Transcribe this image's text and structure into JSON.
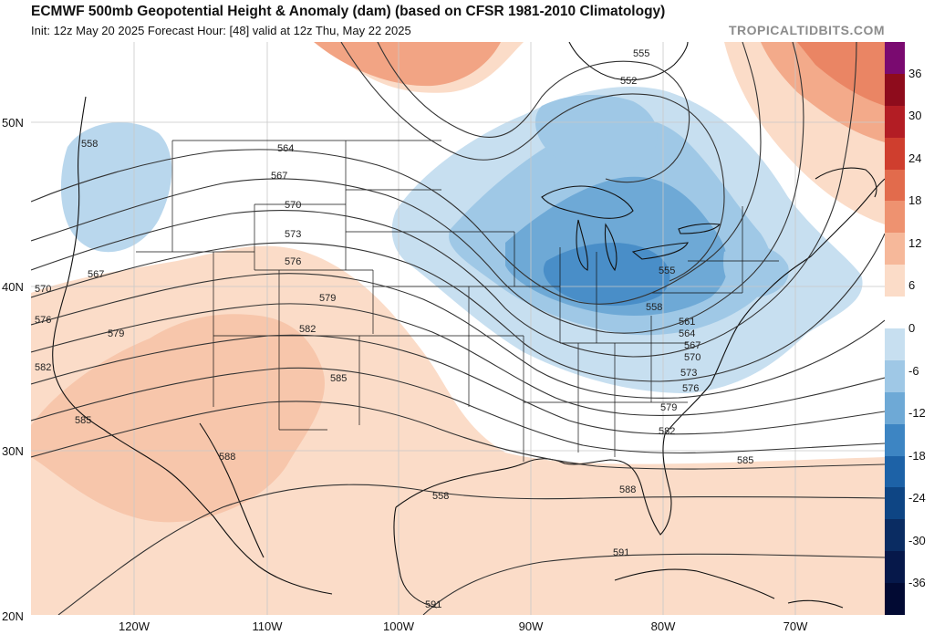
{
  "header": {
    "title": "ECMWF 500mb Geopotential Height & Anomaly (dam) (based on CFSR 1981-2010 Climatology)",
    "subtitle": "Init: 12z May 20 2025   Forecast Hour: [48]   valid at 12z Thu, May 22 2025",
    "credit": "TROPICALTIDBITS.COM"
  },
  "axes": {
    "lat_labels": [
      "50N",
      "40N",
      "30N",
      "20N"
    ],
    "lon_labels": [
      "120W",
      "110W",
      "100W",
      "90W",
      "80W",
      "70W"
    ]
  },
  "colorbar": {
    "labels": [
      "36",
      "30",
      "24",
      "18",
      "12",
      "6",
      "0",
      "-6",
      "-12",
      "-18",
      "-24",
      "-30",
      "-36"
    ],
    "colors": [
      "#7a0a70",
      "#8e0c1c",
      "#b31d24",
      "#cf3e2e",
      "#e26b4c",
      "#ee9270",
      "#f6b89a",
      "#fbdcc8",
      "#ffffff",
      "#c7dff0",
      "#9fc8e6",
      "#6ea9d6",
      "#3d85c3",
      "#1d62a7",
      "#0e4584",
      "#0a2c62",
      "#06184a",
      "#020a33"
    ]
  },
  "contour_labels": [
    "555",
    "552",
    "558",
    "564",
    "567",
    "570",
    "573",
    "576",
    "579",
    "582",
    "585",
    "588",
    "591",
    "555",
    "558",
    "561",
    "564",
    "567",
    "570",
    "573",
    "576",
    "579",
    "582",
    "585",
    "588",
    "591",
    "567",
    "570",
    "576",
    "579",
    "582",
    "585",
    "558"
  ],
  "chart_data": {
    "type": "heatmap",
    "title": "ECMWF 500mb Geopotential Height & Anomaly (dam) (based on CFSR 1981-2010 Climatology)",
    "variable": "500mb geopotential height (dam) contours with anomaly shading (dam)",
    "lat_range": [
      20,
      55
    ],
    "lon_range": [
      -128,
      -63
    ],
    "anomaly_scale": [
      -36,
      36
    ],
    "height_contours_dam": [
      552,
      555,
      558,
      561,
      564,
      567,
      570,
      573,
      576,
      579,
      582,
      585,
      588,
      591
    ],
    "features": [
      {
        "name": "trough",
        "center_lat": 44,
        "center_lon": -86,
        "anomaly": -18
      },
      {
        "name": "ridge",
        "center_lat": 34,
        "center_lon": -112,
        "anomaly": 9
      },
      {
        "name": "trough",
        "center_lat": 48,
        "center_lon": -124,
        "anomaly": -6
      }
    ]
  }
}
